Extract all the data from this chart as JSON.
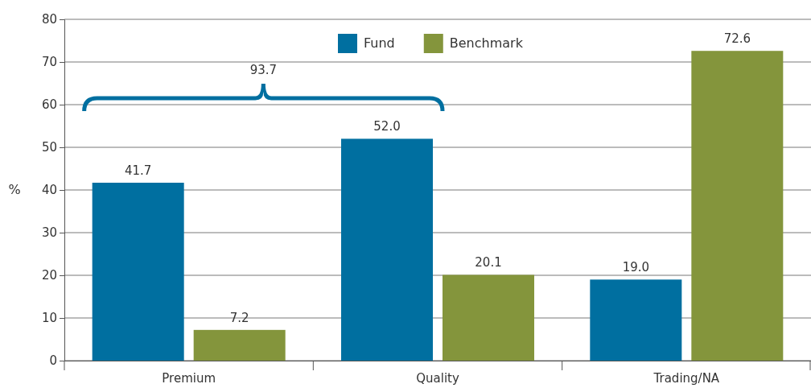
{
  "chart_data": {
    "type": "bar",
    "ylabel": "%",
    "categories": [
      "Premium",
      "Quality",
      "Trading/NA"
    ],
    "series": [
      {
        "name": "Fund",
        "color": "#006fa0",
        "values": [
          41.7,
          52.0,
          19.0
        ],
        "value_labels": [
          "41.7",
          "52.0",
          "19.0"
        ]
      },
      {
        "name": "Benchmark",
        "color": "#84953c",
        "values": [
          7.2,
          20.1,
          72.6
        ],
        "value_labels": [
          "7.2",
          "20.1",
          "72.6"
        ]
      }
    ],
    "ylim": [
      0,
      80
    ],
    "yticks": [
      0,
      10,
      20,
      30,
      40,
      50,
      60,
      70,
      80
    ],
    "grid": "y",
    "legend": "top",
    "annotations": [
      "93.7"
    ]
  }
}
